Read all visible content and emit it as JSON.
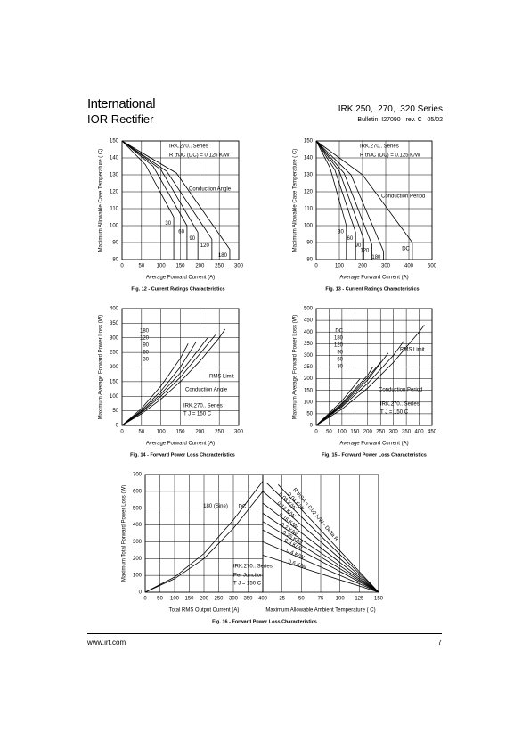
{
  "header": {
    "brand": "International",
    "brand_sub": "IOR Rectifier",
    "title": "IRK.250, .270, .320 Series",
    "bulletin": "Bulletin  I27090   rev. C   05/02"
  },
  "footer": {
    "url": "www.irf.com",
    "page": "7"
  },
  "chart_data": [
    {
      "type": "line",
      "caption": "Fig. 12 - Current Ratings Characteristics",
      "xlabel": "Average Forward Current (A)",
      "ylabel": "Maximum Allowable Case Temperature ( C)",
      "xlim": [
        0,
        300
      ],
      "xticks": [
        0,
        50,
        100,
        150,
        200,
        250,
        300
      ],
      "ylim": [
        80,
        150
      ],
      "yticks": [
        80,
        90,
        100,
        110,
        120,
        130,
        140,
        150
      ],
      "grid": true,
      "annotations": [
        "IRK.270.. Series",
        "R thJC (DC) = 0.125 K/W",
        "Conduction Angle"
      ],
      "series": [
        {
          "name": "30",
          "x": [
            0,
            60,
            133,
            133
          ],
          "values": [
            150,
            136,
            105,
            80
          ]
        },
        {
          "name": "60",
          "x": [
            0,
            80,
            167,
            167
          ],
          "values": [
            150,
            135,
            100,
            80
          ]
        },
        {
          "name": "90",
          "x": [
            0,
            100,
            195,
            195
          ],
          "values": [
            150,
            133,
            96,
            80
          ]
        },
        {
          "name": "120",
          "x": [
            0,
            115,
            231,
            231
          ],
          "values": [
            150,
            132,
            92,
            80
          ]
        },
        {
          "name": "180",
          "x": [
            0,
            140,
            277,
            277
          ],
          "values": [
            150,
            131,
            86,
            80
          ]
        }
      ]
    },
    {
      "type": "line",
      "caption": "Fig. 13 - Current Ratings Characteristics",
      "xlabel": "Average Forward Current (A)",
      "ylabel": "Maximum Allowable Case Temperature ( C)",
      "xlim": [
        0,
        500
      ],
      "xticks": [
        0,
        100,
        200,
        300,
        400,
        500
      ],
      "ylim": [
        80,
        150
      ],
      "yticks": [
        80,
        90,
        100,
        110,
        120,
        130,
        140,
        150
      ],
      "grid": true,
      "annotations": [
        "IRK.270.. Series",
        "R thJC (DC) = 0.125 K/W",
        "Conduction Period"
      ],
      "series": [
        {
          "name": "30",
          "x": [
            0,
            60,
            130,
            130
          ],
          "values": [
            150,
            134,
            100,
            80
          ]
        },
        {
          "name": "60",
          "x": [
            0,
            80,
            170,
            170
          ],
          "values": [
            150,
            133,
            96,
            80
          ]
        },
        {
          "name": "90",
          "x": [
            0,
            100,
            205,
            205
          ],
          "values": [
            150,
            132,
            92,
            80
          ]
        },
        {
          "name": "120",
          "x": [
            0,
            120,
            240,
            240
          ],
          "values": [
            150,
            131,
            89,
            80
          ]
        },
        {
          "name": "180",
          "x": [
            0,
            150,
            290,
            290
          ],
          "values": [
            150,
            130,
            85,
            80
          ]
        },
        {
          "name": "DC",
          "x": [
            0,
            200,
            415,
            415
          ],
          "values": [
            150,
            130,
            90,
            80
          ]
        }
      ]
    },
    {
      "type": "line",
      "caption": "Fig. 14 - Forward Power Loss Characteristics",
      "xlabel": "Average Forward Current (A)",
      "ylabel": "Maximum Average Forward Power Loss (W)",
      "xlim": [
        0,
        300
      ],
      "xticks": [
        0,
        50,
        100,
        150,
        200,
        250,
        300
      ],
      "ylim": [
        0,
        400
      ],
      "yticks": [
        0,
        50,
        100,
        150,
        200,
        250,
        300,
        350,
        400
      ],
      "grid": true,
      "annotations": [
        "RMS Limit",
        "Conduction Angle",
        "IRK.270.. Series",
        "T J = 150 C"
      ],
      "series": [
        {
          "name": "180",
          "x": [
            0,
            50,
            100,
            150,
            200,
            250,
            265
          ],
          "values": [
            0,
            40,
            90,
            150,
            220,
            300,
            330
          ]
        },
        {
          "name": "120",
          "x": [
            0,
            50,
            100,
            150,
            200,
            240
          ],
          "values": [
            0,
            45,
            100,
            165,
            245,
            310
          ]
        },
        {
          "name": "90",
          "x": [
            0,
            50,
            100,
            150,
            200,
            220
          ],
          "values": [
            0,
            48,
            108,
            180,
            265,
            300
          ]
        },
        {
          "name": "60",
          "x": [
            0,
            50,
            100,
            150,
            190
          ],
          "values": [
            0,
            52,
            118,
            200,
            285
          ]
        },
        {
          "name": "30",
          "x": [
            0,
            50,
            100,
            150,
            170
          ],
          "values": [
            0,
            58,
            135,
            230,
            280
          ]
        }
      ]
    },
    {
      "type": "line",
      "caption": "Fig. 15 - Forward Power Loss Characteristics",
      "xlabel": "Average Forward Current (A)",
      "ylabel": "Maximum Average Forward Power Loss (W)",
      "xlim": [
        0,
        450
      ],
      "xticks": [
        0,
        50,
        100,
        150,
        200,
        250,
        300,
        350,
        400,
        450
      ],
      "ylim": [
        0,
        500
      ],
      "yticks": [
        0,
        50,
        100,
        150,
        200,
        250,
        300,
        350,
        400,
        450,
        500
      ],
      "grid": true,
      "annotations": [
        "RMS Limit",
        "Conduction Period",
        "IRK.270.. Series",
        "T J = 150 C"
      ],
      "series": [
        {
          "name": "DC",
          "x": [
            0,
            100,
            200,
            300,
            400,
            420
          ],
          "values": [
            0,
            70,
            160,
            270,
            400,
            430
          ]
        },
        {
          "name": "180",
          "x": [
            0,
            100,
            200,
            300,
            340
          ],
          "values": [
            0,
            80,
            180,
            300,
            360
          ]
        },
        {
          "name": "120",
          "x": [
            0,
            100,
            200,
            280
          ],
          "values": [
            0,
            85,
            195,
            310
          ]
        },
        {
          "name": "90",
          "x": [
            0,
            100,
            200,
            250
          ],
          "values": [
            0,
            90,
            205,
            270
          ]
        },
        {
          "name": "60",
          "x": [
            0,
            100,
            200,
            220
          ],
          "values": [
            0,
            95,
            215,
            250
          ]
        },
        {
          "name": "30",
          "x": [
            0,
            100,
            170
          ],
          "values": [
            0,
            105,
            200
          ]
        }
      ]
    },
    {
      "type": "line",
      "caption": "Fig. 16 - Forward Power Loss Characteristics",
      "xlabel": "Total RMS Output Current (A)",
      "ylabel": "Maximum Total Forward Power Loss (W)",
      "xlim": [
        0,
        400
      ],
      "xticks": [
        0,
        50,
        100,
        150,
        200,
        250,
        300,
        350,
        400
      ],
      "ylim": [
        0,
        700
      ],
      "yticks": [
        0,
        100,
        200,
        300,
        400,
        500,
        600,
        700
      ],
      "grid": true,
      "annotations": [
        "IRK.270.. Series",
        "Per Junction",
        "T J = 150 C"
      ],
      "series": [
        {
          "name": "180 (Sine)",
          "x": [
            0,
            100,
            200,
            300,
            400
          ],
          "values": [
            0,
            80,
            200,
            380,
            600
          ]
        },
        {
          "name": "DC",
          "x": [
            0,
            100,
            200,
            300,
            400
          ],
          "values": [
            0,
            90,
            230,
            430,
            660
          ]
        }
      ]
    },
    {
      "type": "line",
      "xlabel": "Maximum Allowable Ambient Temperature ( C)",
      "xlim": [
        0,
        150
      ],
      "xticks": [
        25,
        50,
        75,
        100,
        125,
        150
      ],
      "ylim": [
        0,
        700
      ],
      "grid": true,
      "annotations": [
        "R thSA = 0.02 K/W - Delta R"
      ],
      "series": [
        {
          "name": "0.04 K/W",
          "x": [
            20,
            150
          ],
          "values": [
            640,
            0
          ]
        },
        {
          "name": "0.08 K/W",
          "x": [
            5,
            150
          ],
          "values": [
            650,
            0
          ]
        },
        {
          "name": "0.12 K/W",
          "x": [
            0,
            150
          ],
          "values": [
            600,
            0
          ]
        },
        {
          "name": "0.16 K/W",
          "x": [
            0,
            150
          ],
          "values": [
            530,
            0
          ]
        },
        {
          "name": "0.2 K/W",
          "x": [
            0,
            150
          ],
          "values": [
            470,
            0
          ]
        },
        {
          "name": "0.25 K/W",
          "x": [
            0,
            150
          ],
          "values": [
            420,
            0
          ]
        },
        {
          "name": "0.3 K/W",
          "x": [
            0,
            150
          ],
          "values": [
            370,
            0
          ]
        },
        {
          "name": "0.4 K/W",
          "x": [
            0,
            150
          ],
          "values": [
            300,
            0
          ]
        },
        {
          "name": "0.6 K/W",
          "x": [
            0,
            150
          ],
          "values": [
            220,
            0
          ]
        }
      ]
    }
  ]
}
